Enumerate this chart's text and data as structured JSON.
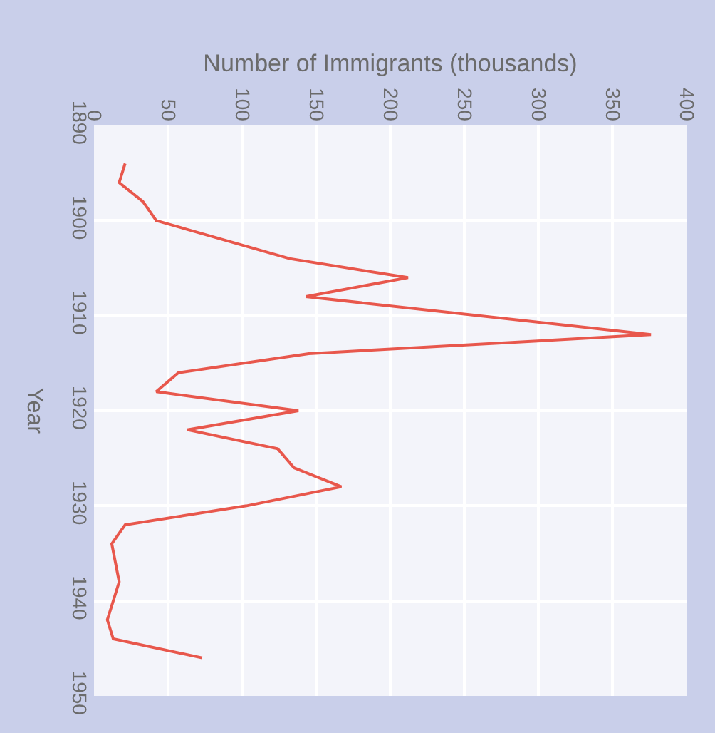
{
  "chart_data": {
    "type": "line",
    "xlabel": "Number of Immigrants (thousands)",
    "ylabel": "Year",
    "series": [
      {
        "color": "#e8574c",
        "x": [
          21,
          17,
          33,
          42,
          132,
          212,
          143,
          376,
          145,
          57,
          42,
          138,
          63,
          124,
          135,
          167,
          103,
          21,
          12,
          17,
          9,
          13,
          73
        ],
        "values": [
          1894,
          1896,
          1898,
          1900,
          1904,
          1906,
          1908,
          1912,
          1914,
          1916,
          1918,
          1920,
          1922,
          1924,
          1926,
          1928,
          1930,
          1932,
          1934,
          1938,
          1942,
          1944,
          1946
        ]
      }
    ],
    "xlim": [
      0,
      400
    ],
    "xticks": [
      0,
      50,
      100,
      150,
      200,
      250,
      300,
      350,
      400
    ],
    "ylim": [
      1950,
      1890
    ],
    "yticks": [
      1890,
      1900,
      1910,
      1920,
      1930,
      1940,
      1950
    ],
    "grid": true,
    "marker": "none",
    "line_style": "solid"
  }
}
